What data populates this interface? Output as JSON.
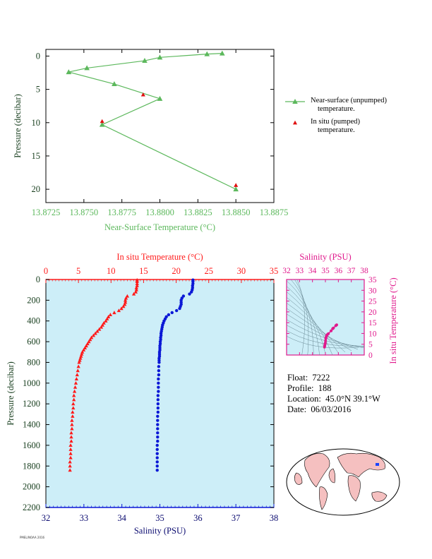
{
  "chart_data": [
    {
      "type": "line",
      "xlabel": "Near-Surface Temperature (°C)",
      "ylabel": "Pressure (decibar)",
      "xlim": [
        13.8725,
        13.8875
      ],
      "ylim": [
        22,
        -1
      ],
      "xticks": [
        "13.8725",
        "13.8750",
        "13.8775",
        "13.8800",
        "13.8825",
        "13.8850",
        "13.8875"
      ],
      "yticks": [
        "0",
        "5",
        "10",
        "15",
        "20"
      ],
      "grid": false,
      "legend_position": "right",
      "series": [
        {
          "name": "Near-surface (unpumped) temperature.",
          "color": "#5cb85c",
          "marker": "triangle",
          "points": [
            [
              13.8841,
              -0.4
            ],
            [
              13.8831,
              -0.3
            ],
            [
              13.88,
              0.2
            ],
            [
              13.879,
              0.7
            ],
            [
              13.8752,
              1.8
            ],
            [
              13.874,
              2.4
            ],
            [
              13.877,
              4.2
            ],
            [
              13.88,
              6.4
            ],
            [
              13.8762,
              10.3
            ],
            [
              13.885,
              20.0
            ]
          ]
        },
        {
          "name": "In situ (pumped) temperature.",
          "color": "#e01010",
          "marker": "triangle",
          "points": [
            [
              13.8789,
              5.8
            ],
            [
              13.8762,
              9.8
            ],
            [
              13.885,
              19.4
            ]
          ]
        }
      ]
    },
    {
      "type": "scatter",
      "title": "In situ Temperature (°C)",
      "xlabel": "Salinity (PSU)",
      "ylabel": "Pressure (decibar)",
      "temp_lim": [
        0,
        35
      ],
      "sal_lim": [
        32,
        38
      ],
      "ylim": [
        2200,
        0
      ],
      "temp_ticks": [
        "0",
        "5",
        "10",
        "15",
        "20",
        "25",
        "30",
        "35"
      ],
      "sal_ticks": [
        "32",
        "33",
        "34",
        "35",
        "36",
        "37",
        "38"
      ],
      "yticks": [
        "0",
        "200",
        "400",
        "600",
        "800",
        "1000",
        "1200",
        "1400",
        "1600",
        "1800",
        "2000",
        "2200"
      ],
      "background": "#cdeef8",
      "series": [
        {
          "name": "In situ Temperature (°C)",
          "color": "#ff1a1a",
          "marker": "triangle",
          "pressure": [
            5,
            20,
            40,
            60,
            80,
            100,
            120,
            140,
            160,
            180,
            200,
            220,
            240,
            260,
            280,
            300,
            320,
            340,
            360,
            380,
            400,
            420,
            440,
            460,
            480,
            500,
            520,
            540,
            560,
            580,
            600,
            620,
            640,
            660,
            680,
            700,
            720,
            740,
            760,
            780,
            800,
            840,
            880,
            920,
            960,
            1000,
            1040,
            1080,
            1120,
            1160,
            1200,
            1240,
            1280,
            1320,
            1360,
            1400,
            1440,
            1480,
            1520,
            1560,
            1600,
            1640,
            1680,
            1720,
            1760,
            1800,
            1840
          ],
          "values": [
            14.0,
            14.0,
            14.0,
            14.0,
            13.9,
            13.9,
            13.8,
            13.5,
            12.5,
            12.3,
            12.2,
            12.2,
            12.1,
            11.9,
            11.6,
            11.2,
            10.5,
            9.9,
            9.6,
            9.4,
            9.2,
            8.9,
            8.7,
            8.5,
            8.2,
            7.9,
            7.6,
            7.3,
            7.0,
            6.8,
            6.6,
            6.4,
            6.2,
            6.0,
            5.8,
            5.6,
            5.5,
            5.4,
            5.3,
            5.2,
            5.1,
            5.0,
            4.9,
            4.8,
            4.7,
            4.6,
            4.5,
            4.4,
            4.3,
            4.3,
            4.2,
            4.2,
            4.1,
            4.1,
            4.0,
            4.0,
            4.0,
            3.9,
            3.9,
            3.9,
            3.8,
            3.8,
            3.8,
            3.8,
            3.7,
            3.7,
            3.7
          ]
        },
        {
          "name": "Salinity (PSU)",
          "color": "#0b18d6",
          "marker": "circle",
          "pressure": [
            5,
            20,
            40,
            60,
            80,
            100,
            120,
            140,
            160,
            180,
            200,
            220,
            240,
            260,
            280,
            300,
            320,
            340,
            360,
            380,
            400,
            420,
            440,
            460,
            480,
            500,
            520,
            540,
            560,
            580,
            600,
            620,
            640,
            660,
            680,
            700,
            720,
            740,
            760,
            780,
            800,
            840,
            880,
            920,
            960,
            1000,
            1040,
            1080,
            1120,
            1160,
            1200,
            1240,
            1280,
            1320,
            1360,
            1400,
            1440,
            1480,
            1520,
            1560,
            1600,
            1640,
            1680,
            1720,
            1760,
            1800,
            1840
          ],
          "values": [
            35.87,
            35.87,
            35.87,
            35.86,
            35.86,
            35.85,
            35.83,
            35.78,
            35.62,
            35.58,
            35.56,
            35.56,
            35.56,
            35.54,
            35.52,
            35.44,
            35.32,
            35.23,
            35.17,
            35.14,
            35.11,
            35.09,
            35.07,
            35.06,
            35.05,
            35.04,
            35.03,
            35.03,
            35.02,
            35.02,
            35.01,
            35.01,
            35.0,
            35.0,
            35.0,
            34.99,
            34.99,
            34.99,
            34.98,
            34.98,
            34.98,
            34.97,
            34.97,
            34.97,
            34.96,
            34.96,
            34.96,
            34.96,
            34.95,
            34.95,
            34.95,
            34.95,
            34.95,
            34.94,
            34.94,
            34.94,
            34.94,
            34.94,
            34.94,
            34.94,
            34.93,
            34.93,
            34.93,
            34.93,
            34.93,
            34.93,
            34.93
          ]
        }
      ]
    },
    {
      "type": "scatter",
      "title": "Salinity (PSU)",
      "ylabel": "In situ Temperature (°C)",
      "xlim": [
        32,
        38
      ],
      "ylim": [
        0,
        35
      ],
      "xticks": [
        "32",
        "33",
        "34",
        "35",
        "36",
        "37",
        "38"
      ],
      "yticks": [
        "0",
        "5",
        "10",
        "15",
        "20",
        "25",
        "30",
        "35"
      ],
      "color": "#e0198c",
      "points": [
        [
          34.93,
          3.7
        ],
        [
          34.95,
          4.3
        ],
        [
          34.97,
          5.0
        ],
        [
          34.99,
          5.5
        ],
        [
          35.01,
          6.6
        ],
        [
          35.03,
          7.6
        ],
        [
          35.05,
          8.2
        ],
        [
          35.09,
          8.9
        ],
        [
          35.14,
          9.4
        ],
        [
          35.23,
          9.9
        ],
        [
          35.44,
          11.2
        ],
        [
          35.56,
          12.2
        ],
        [
          35.62,
          12.5
        ],
        [
          35.8,
          13.6
        ],
        [
          35.87,
          14.0
        ]
      ]
    }
  ],
  "float_info": {
    "float_label": "Float:",
    "float_value": "7222",
    "profile_label": "Profile:",
    "profile_value": "188",
    "location_label": "Location:",
    "location_value": "45.0°N  39.1°W",
    "date_label": "Date:",
    "date_value": "06/03/2016"
  },
  "legend": {
    "item1_line1": "Near-surface (unpumped)",
    "item1_line2": "temperature.",
    "item2_line1": "In situ (pumped)",
    "item2_line2": "temperature."
  },
  "map": {
    "land_color": "#f5c0c0",
    "ocean_color": "#ffffff",
    "marker_color": "#1a44ff"
  },
  "footer_note": "PMEL/NOAA 2016"
}
